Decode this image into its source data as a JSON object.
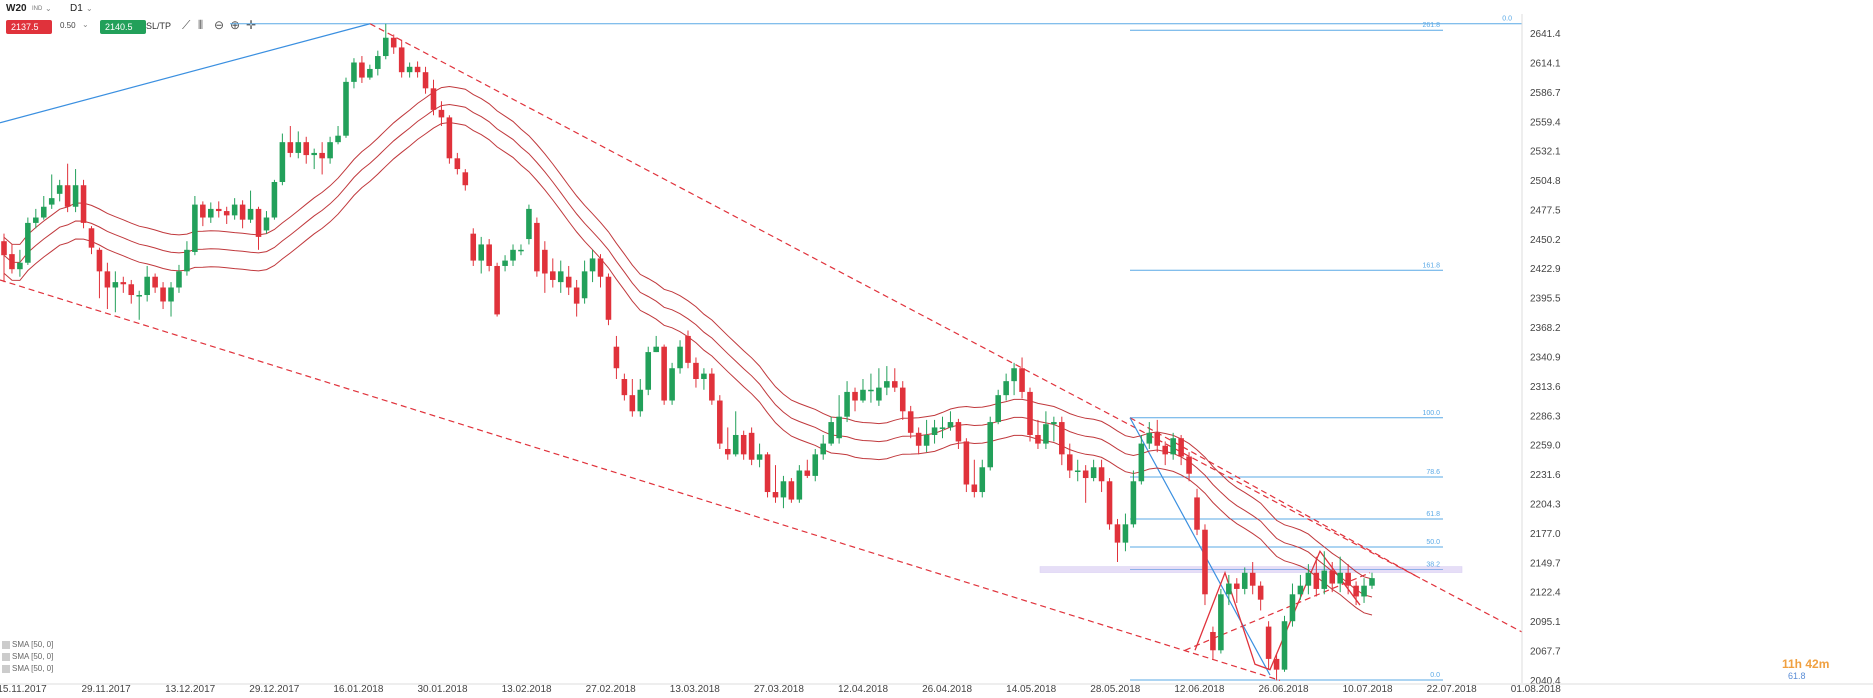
{
  "toolbar": {
    "symbol": "W20",
    "source": "IND",
    "timeframe": "D1",
    "sell_price": "2137.5",
    "spread": "0.50",
    "buy_price": "2140.5",
    "sltp_label": "SL/TP"
  },
  "indicators": [
    "SMA [50, 0]",
    "SMA [50, 0]",
    "SMA [50, 0]"
  ],
  "countdown": "11h 42m",
  "countdown_sub": "61.8",
  "colors": {
    "bull": "#22a05a",
    "bear": "#e0323b",
    "ma": "#c0383c",
    "fib": "#5aa9e6",
    "trend": "#e0323b",
    "blue_line": "#3a8fe0",
    "zone": "#c9b8ee"
  },
  "chart_data": {
    "type": "candlestick",
    "title": "",
    "ylim": [
      2040.4,
      2652
    ],
    "y_ticks": [
      "2641.4",
      "2614.1",
      "2586.7",
      "2559.4",
      "2532.1",
      "2504.8",
      "2477.5",
      "2450.2",
      "2422.9",
      "2395.5",
      "2368.2",
      "2340.9",
      "2313.6",
      "2286.3",
      "2259.0",
      "2231.6",
      "2204.3",
      "2177.0",
      "2149.7",
      "2122.4",
      "2095.1",
      "2067.7",
      "2040.4"
    ],
    "x_labels": [
      "15.11.2017",
      "29.11.2017",
      "13.12.2017",
      "29.12.2017",
      "16.01.2018",
      "30.01.2018",
      "13.02.2018",
      "27.02.2018",
      "13.03.2018",
      "27.03.2018",
      "12.04.2018",
      "26.04.2018",
      "14.05.2018",
      "28.05.2018",
      "12.06.2018",
      "26.06.2018",
      "10.07.2018",
      "22.07.2018",
      "01.08.2018"
    ],
    "fib_levels": [
      {
        "label": "0.0",
        "price": 2040.4
      },
      {
        "label": "38.2",
        "price": 2143
      },
      {
        "label": "50.0",
        "price": 2164
      },
      {
        "label": "61.8",
        "price": 2190
      },
      {
        "label": "78.6",
        "price": 2229
      },
      {
        "label": "100.0",
        "price": 2284
      },
      {
        "label": "161.8",
        "price": 2421
      },
      {
        "label": "261.8",
        "price": 2644
      },
      {
        "label": "0.0",
        "price": 2650
      }
    ],
    "candles": [
      [
        2448,
        2435,
        2455,
        2410
      ],
      [
        2436,
        2422,
        2445,
        2418
      ],
      [
        2422,
        2428,
        2440,
        2415
      ],
      [
        2428,
        2465,
        2470,
        2426
      ],
      [
        2465,
        2470,
        2478,
        2460
      ],
      [
        2470,
        2480,
        2490,
        2468
      ],
      [
        2482,
        2488,
        2510,
        2478
      ],
      [
        2492,
        2500,
        2505,
        2485
      ],
      [
        2500,
        2480,
        2520,
        2475
      ],
      [
        2480,
        2500,
        2515,
        2475
      ],
      [
        2500,
        2465,
        2505,
        2460
      ],
      [
        2460,
        2442,
        2462,
        2436
      ],
      [
        2440,
        2420,
        2442,
        2395
      ],
      [
        2420,
        2405,
        2428,
        2385
      ],
      [
        2405,
        2410,
        2420,
        2382
      ],
      [
        2410,
        2408,
        2415,
        2400
      ],
      [
        2408,
        2398,
        2412,
        2390
      ],
      [
        2398,
        2398,
        2402,
        2375
      ],
      [
        2398,
        2415,
        2425,
        2392
      ],
      [
        2415,
        2405,
        2418,
        2400
      ],
      [
        2405,
        2392,
        2410,
        2385
      ],
      [
        2392,
        2405,
        2410,
        2378
      ],
      [
        2405,
        2420,
        2426,
        2400
      ],
      [
        2420,
        2440,
        2448,
        2416
      ],
      [
        2438,
        2482,
        2490,
        2435
      ],
      [
        2482,
        2470,
        2485,
        2462
      ],
      [
        2470,
        2478,
        2484,
        2465
      ],
      [
        2478,
        2476,
        2485,
        2470
      ],
      [
        2476,
        2472,
        2480,
        2464
      ],
      [
        2472,
        2482,
        2488,
        2468
      ],
      [
        2482,
        2468,
        2486,
        2460
      ],
      [
        2468,
        2478,
        2495,
        2465
      ],
      [
        2478,
        2452,
        2480,
        2440
      ],
      [
        2458,
        2470,
        2476,
        2455
      ],
      [
        2470,
        2503,
        2505,
        2468
      ],
      [
        2503,
        2540,
        2548,
        2500
      ],
      [
        2540,
        2530,
        2555,
        2526
      ],
      [
        2530,
        2540,
        2550,
        2525
      ],
      [
        2540,
        2528,
        2545,
        2520
      ],
      [
        2528,
        2530,
        2534,
        2515
      ],
      [
        2530,
        2525,
        2540,
        2510
      ],
      [
        2525,
        2540,
        2545,
        2520
      ],
      [
        2540,
        2546,
        2555,
        2538
      ],
      [
        2546,
        2596,
        2600,
        2544
      ],
      [
        2596,
        2614,
        2618,
        2590
      ],
      [
        2614,
        2600,
        2620,
        2595
      ],
      [
        2600,
        2608,
        2612,
        2598
      ],
      [
        2608,
        2620,
        2625,
        2602
      ],
      [
        2620,
        2637,
        2650,
        2617
      ],
      [
        2637,
        2628,
        2640,
        2622
      ],
      [
        2628,
        2605,
        2635,
        2600
      ],
      [
        2605,
        2610,
        2614,
        2600
      ],
      [
        2610,
        2605,
        2615,
        2600
      ],
      [
        2605,
        2590,
        2610,
        2585
      ],
      [
        2590,
        2570,
        2598,
        2565
      ],
      [
        2570,
        2563,
        2578,
        2555
      ],
      [
        2563,
        2525,
        2565,
        2520
      ],
      [
        2525,
        2515,
        2530,
        2510
      ],
      [
        2512,
        2500,
        2515,
        2495
      ],
      [
        2455,
        2430,
        2460,
        2425
      ],
      [
        2430,
        2445,
        2452,
        2418
      ],
      [
        2445,
        2425,
        2450,
        2420
      ],
      [
        2425,
        2380,
        2428,
        2378
      ],
      [
        2425,
        2430,
        2435,
        2420
      ],
      [
        2430,
        2440,
        2445,
        2425
      ],
      [
        2440,
        2440,
        2445,
        2435
      ],
      [
        2450,
        2478,
        2482,
        2445
      ],
      [
        2465,
        2420,
        2470,
        2415
      ],
      [
        2440,
        2418,
        2448,
        2400
      ],
      [
        2420,
        2412,
        2432,
        2405
      ],
      [
        2410,
        2420,
        2430,
        2400
      ],
      [
        2415,
        2405,
        2425,
        2398
      ],
      [
        2405,
        2390,
        2412,
        2378
      ],
      [
        2395,
        2420,
        2430,
        2390
      ],
      [
        2420,
        2432,
        2440,
        2410
      ],
      [
        2432,
        2415,
        2436,
        2405
      ],
      [
        2415,
        2375,
        2418,
        2370
      ],
      [
        2350,
        2330,
        2360,
        2320
      ],
      [
        2320,
        2305,
        2325,
        2300
      ],
      [
        2305,
        2290,
        2320,
        2285
      ],
      [
        2290,
        2310,
        2320,
        2285
      ],
      [
        2310,
        2345,
        2350,
        2305
      ],
      [
        2345,
        2350,
        2360,
        2345
      ],
      [
        2350,
        2300,
        2352,
        2296
      ],
      [
        2300,
        2330,
        2335,
        2296
      ],
      [
        2330,
        2350,
        2356,
        2325
      ],
      [
        2360,
        2335,
        2365,
        2330
      ],
      [
        2335,
        2320,
        2340,
        2312
      ],
      [
        2320,
        2325,
        2330,
        2310
      ],
      [
        2325,
        2300,
        2330,
        2296
      ],
      [
        2300,
        2260,
        2305,
        2255
      ],
      [
        2255,
        2250,
        2275,
        2245
      ],
      [
        2250,
        2268,
        2290,
        2248
      ],
      [
        2268,
        2250,
        2272,
        2245
      ],
      [
        2270,
        2245,
        2275,
        2240
      ],
      [
        2245,
        2250,
        2260,
        2238
      ],
      [
        2250,
        2215,
        2252,
        2210
      ],
      [
        2215,
        2210,
        2240,
        2205
      ],
      [
        2210,
        2225,
        2230,
        2200
      ],
      [
        2225,
        2208,
        2228,
        2205
      ],
      [
        2208,
        2235,
        2240,
        2205
      ],
      [
        2235,
        2230,
        2245,
        2228
      ],
      [
        2230,
        2250,
        2255,
        2225
      ],
      [
        2250,
        2260,
        2268,
        2245
      ],
      [
        2260,
        2280,
        2285,
        2258
      ],
      [
        2265,
        2285,
        2305,
        2260
      ],
      [
        2285,
        2308,
        2318,
        2280
      ],
      [
        2308,
        2300,
        2312,
        2290
      ],
      [
        2300,
        2310,
        2320,
        2298
      ],
      [
        2310,
        2310,
        2325,
        2298
      ],
      [
        2300,
        2312,
        2330,
        2295
      ],
      [
        2312,
        2318,
        2332,
        2305
      ],
      [
        2318,
        2312,
        2330,
        2308
      ],
      [
        2312,
        2290,
        2318,
        2282
      ],
      [
        2290,
        2270,
        2295,
        2265
      ],
      [
        2270,
        2258,
        2275,
        2250
      ],
      [
        2258,
        2268,
        2282,
        2252
      ],
      [
        2268,
        2275,
        2282,
        2260
      ],
      [
        2275,
        2275,
        2285,
        2265
      ],
      [
        2275,
        2280,
        2290,
        2272
      ],
      [
        2280,
        2262,
        2283,
        2255
      ],
      [
        2262,
        2222,
        2265,
        2215
      ],
      [
        2222,
        2215,
        2245,
        2210
      ],
      [
        2215,
        2238,
        2245,
        2210
      ],
      [
        2238,
        2280,
        2285,
        2235
      ],
      [
        2280,
        2305,
        2310,
        2278
      ],
      [
        2305,
        2318,
        2325,
        2300
      ],
      [
        2318,
        2330,
        2335,
        2305
      ],
      [
        2330,
        2308,
        2340,
        2302
      ],
      [
        2308,
        2268,
        2312,
        2262
      ],
      [
        2268,
        2260,
        2282,
        2255
      ],
      [
        2260,
        2278,
        2290,
        2255
      ],
      [
        2278,
        2280,
        2285,
        2262
      ],
      [
        2280,
        2250,
        2285,
        2240
      ],
      [
        2250,
        2235,
        2260,
        2228
      ],
      [
        2235,
        2235,
        2245,
        2225
      ],
      [
        2235,
        2228,
        2240,
        2205
      ],
      [
        2228,
        2238,
        2245,
        2225
      ],
      [
        2238,
        2225,
        2245,
        2215
      ],
      [
        2225,
        2185,
        2228,
        2180
      ],
      [
        2185,
        2168,
        2190,
        2150
      ],
      [
        2168,
        2185,
        2195,
        2160
      ],
      [
        2185,
        2225,
        2235,
        2182
      ],
      [
        2225,
        2260,
        2268,
        2222
      ],
      [
        2260,
        2270,
        2280,
        2255
      ],
      [
        2270,
        2258,
        2282,
        2252
      ],
      [
        2258,
        2250,
        2262,
        2240
      ],
      [
        2250,
        2265,
        2270,
        2245
      ],
      [
        2265,
        2248,
        2268,
        2240
      ],
      [
        2248,
        2232,
        2252,
        2225
      ],
      [
        2210,
        2180,
        2218,
        2175
      ],
      [
        2180,
        2120,
        2185,
        2110
      ],
      [
        2085,
        2068,
        2090,
        2060
      ],
      [
        2068,
        2120,
        2125,
        2065
      ],
      [
        2120,
        2130,
        2138,
        2110
      ],
      [
        2130,
        2125,
        2135,
        2112
      ],
      [
        2125,
        2140,
        2145,
        2120
      ],
      [
        2140,
        2128,
        2150,
        2120
      ],
      [
        2128,
        2115,
        2132,
        2105
      ],
      [
        2090,
        2060,
        2095,
        2050
      ],
      [
        2060,
        2050,
        2065,
        2040
      ],
      [
        2050,
        2095,
        2100,
        2048
      ],
      [
        2095,
        2120,
        2130,
        2090
      ],
      [
        2120,
        2128,
        2138,
        2115
      ],
      [
        2128,
        2140,
        2148,
        2120
      ],
      [
        2140,
        2125,
        2155,
        2118
      ],
      [
        2125,
        2142,
        2160,
        2120
      ],
      [
        2142,
        2130,
        2150,
        2122
      ],
      [
        2130,
        2140,
        2155,
        2122
      ],
      [
        2140,
        2128,
        2148,
        2120
      ],
      [
        2128,
        2118,
        2132,
        2110
      ],
      [
        2118,
        2128,
        2135,
        2112
      ],
      [
        2128,
        2135,
        2140,
        2125
      ]
    ]
  }
}
